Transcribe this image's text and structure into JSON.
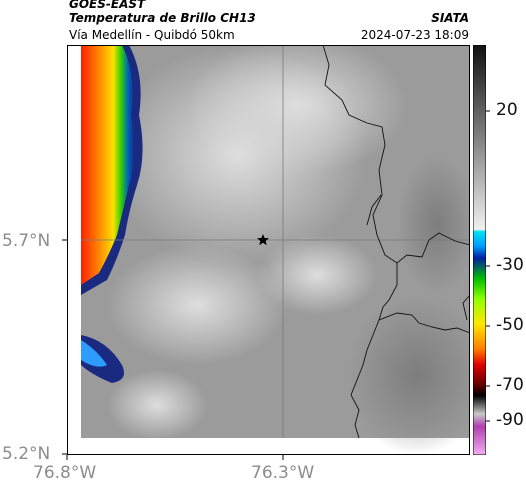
{
  "header": {
    "satellite": "GOES-EAST",
    "product": "Temperatura de Brillo CH13",
    "organization": "SIATA",
    "region": "Vía Medellín - Quibdó 50km",
    "datetime": "2024-07-23 18:09"
  },
  "axes": {
    "lat_ticks": [
      "5.7°N",
      "5.2°N"
    ],
    "lon_ticks": [
      "76.8°W",
      "76.3°W"
    ]
  },
  "colorbar": {
    "ticks": [
      "20",
      "-30",
      "-50",
      "-70",
      "-90"
    ]
  },
  "map": {
    "marker_icon": "star-icon",
    "background_color": "#9a9a9a",
    "cloud_color": "#d8d8d8"
  }
}
